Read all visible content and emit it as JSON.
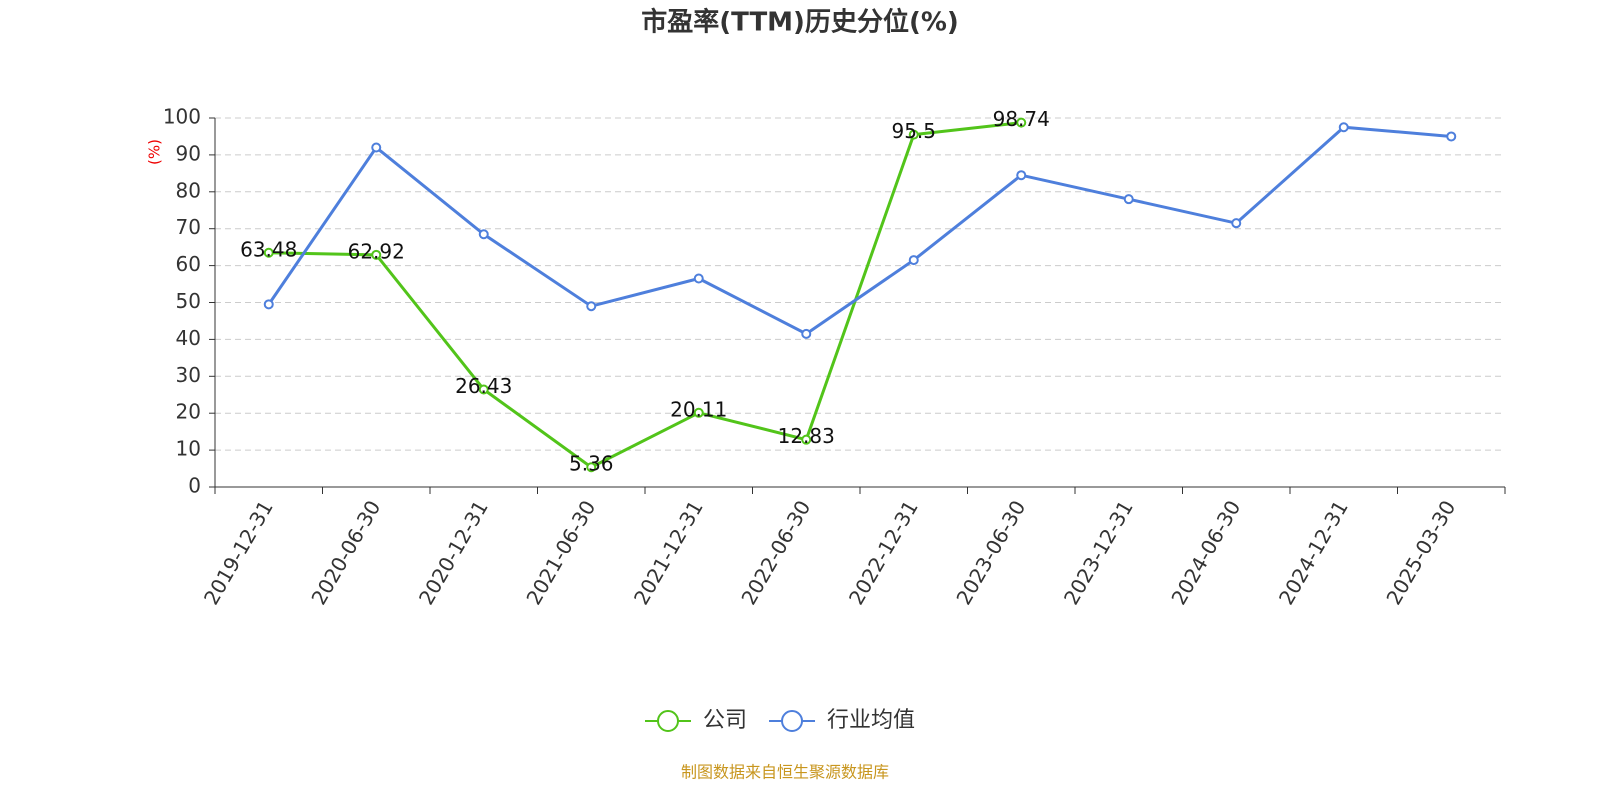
{
  "chart_data": {
    "type": "line",
    "title": "市盈率(TTM)历史分位(%)",
    "y_label": "(%)",
    "source": "制图数据来自恒生聚源数据库",
    "categories": [
      "2019-12-31",
      "2020-06-30",
      "2020-12-31",
      "2021-06-30",
      "2021-12-31",
      "2022-06-30",
      "2022-12-31",
      "2023-06-30",
      "2023-12-31",
      "2024-06-30",
      "2024-12-31",
      "2025-03-30"
    ],
    "series": [
      {
        "name": "公司",
        "color": "#52c41a",
        "show_labels": true,
        "values": [
          63.48,
          62.92,
          26.43,
          5.36,
          20.11,
          12.83,
          95.5,
          98.74,
          null,
          null,
          null,
          null
        ]
      },
      {
        "name": "行业均值",
        "color": "#4e7fdc",
        "show_labels": false,
        "values": [
          49.5,
          92,
          68.5,
          49,
          56.5,
          41.5,
          61.5,
          84.5,
          78,
          71.5,
          97.5,
          95
        ]
      }
    ],
    "ylim": [
      0,
      100
    ],
    "yticks": [
      0,
      10,
      20,
      30,
      40,
      50,
      60,
      70,
      80,
      90,
      100
    ],
    "grid": true,
    "legend": "bottom"
  }
}
